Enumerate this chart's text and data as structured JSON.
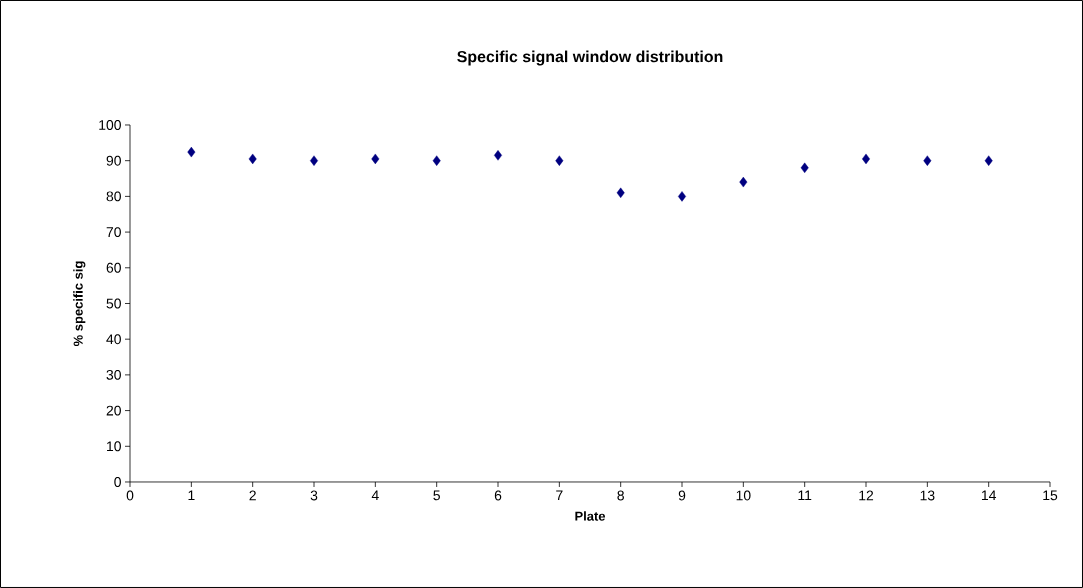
{
  "chart_data": {
    "type": "scatter",
    "title": "Specific signal window distribution",
    "xlabel": "Plate",
    "ylabel": "% specific sig",
    "x": [
      1,
      2,
      3,
      4,
      5,
      6,
      7,
      8,
      9,
      10,
      11,
      12,
      13,
      14
    ],
    "values": [
      92.4,
      90.5,
      90,
      90.5,
      90,
      91.5,
      90,
      81,
      80,
      84,
      88,
      90.5,
      90,
      90
    ],
    "color": "#000080",
    "marker": "diamond",
    "xlim": [
      0,
      15
    ],
    "xticks": [
      0,
      1,
      2,
      3,
      4,
      5,
      6,
      7,
      8,
      9,
      10,
      11,
      12,
      13,
      14,
      15
    ],
    "ylim": [
      0,
      100
    ],
    "yticks": [
      0,
      10,
      20,
      30,
      40,
      50,
      60,
      70,
      80,
      90,
      100
    ],
    "grid": false
  }
}
